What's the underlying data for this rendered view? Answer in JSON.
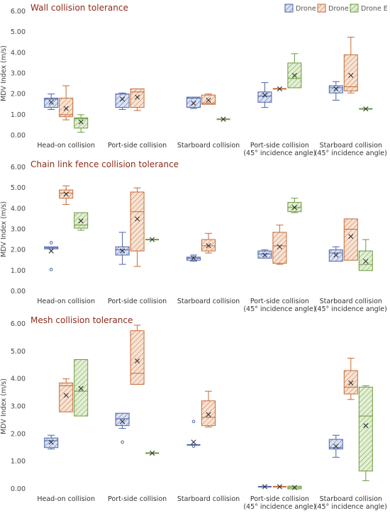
{
  "legend": [
    {
      "name": "Drone B",
      "color": "#4a63a8",
      "fill": "#cdd6ee",
      "pattern": "hatch-blue"
    },
    {
      "name": "Drone D",
      "color": "#c46a38",
      "fill": "#f6dcc8",
      "pattern": "hatch-orange"
    },
    {
      "name": "Drone E",
      "color": "#6a9a3e",
      "fill": "#dcebc9",
      "pattern": "hatch-green"
    }
  ],
  "categories": [
    [
      "Head-on collision"
    ],
    [
      "Port-side collision"
    ],
    [
      "Starboard collision"
    ],
    [
      "Port-side collision",
      "(45° incidence angle)"
    ],
    [
      "Starboard collision",
      "(45° incidence angle)"
    ]
  ],
  "chart_data": [
    {
      "type": "box",
      "title": "Wall collision tolerance",
      "ylabel": "MDV Index (m/s)",
      "ylim": [
        0,
        6
      ],
      "yticks": [
        "0.00",
        "1.00",
        "2.00",
        "3.00",
        "4.00",
        "5.00",
        "6.00"
      ],
      "boxes": [
        {
          "cat": 0,
          "series": 0,
          "min": 1.25,
          "q1": 1.35,
          "median": 1.75,
          "q3": 1.8,
          "max": 2.0,
          "mean": 1.6,
          "outliers": []
        },
        {
          "cat": 0,
          "series": 1,
          "min": 0.75,
          "q1": 0.9,
          "median": 1.0,
          "q3": 1.8,
          "max": 2.4,
          "mean": 1.3,
          "outliers": []
        },
        {
          "cat": 0,
          "series": 2,
          "min": 0.15,
          "q1": 0.35,
          "median": 0.8,
          "q3": 0.85,
          "max": 1.0,
          "mean": 0.65,
          "outliers": []
        },
        {
          "cat": 1,
          "series": 0,
          "min": 1.25,
          "q1": 1.35,
          "median": 2.0,
          "q3": 2.0,
          "max": 2.05,
          "mean": 1.75,
          "outliers": []
        },
        {
          "cat": 1,
          "series": 1,
          "min": 1.2,
          "q1": 1.35,
          "median": 2.1,
          "q3": 2.25,
          "max": 2.25,
          "mean": 1.85,
          "outliers": []
        },
        {
          "cat": 2,
          "series": 0,
          "min": 1.3,
          "q1": 1.35,
          "median": 1.8,
          "q3": 1.85,
          "max": 1.85,
          "mean": 1.55,
          "outliers": []
        },
        {
          "cat": 2,
          "series": 1,
          "min": 1.5,
          "q1": 1.5,
          "median": 1.55,
          "q3": 1.95,
          "max": 2.0,
          "mean": 1.7,
          "outliers": []
        },
        {
          "cat": 2,
          "series": 2,
          "min": 0.78,
          "q1": 0.78,
          "median": 0.78,
          "q3": 0.78,
          "max": 0.78,
          "mean": 0.78,
          "outliers": []
        },
        {
          "cat": 3,
          "series": 0,
          "min": 1.35,
          "q1": 1.6,
          "median": 1.9,
          "q3": 2.1,
          "max": 2.55,
          "mean": 1.95,
          "outliers": []
        },
        {
          "cat": 3,
          "series": 1,
          "min": 2.25,
          "q1": 2.25,
          "median": 2.25,
          "q3": 2.25,
          "max": 2.25,
          "mean": 2.25,
          "outliers": []
        },
        {
          "cat": 3,
          "series": 2,
          "min": 2.3,
          "q1": 2.3,
          "median": 2.75,
          "q3": 3.5,
          "max": 3.95,
          "mean": 2.9,
          "outliers": []
        },
        {
          "cat": 4,
          "series": 0,
          "min": 1.7,
          "q1": 2.05,
          "median": 2.3,
          "q3": 2.4,
          "max": 2.6,
          "mean": 2.25,
          "outliers": []
        },
        {
          "cat": 4,
          "series": 1,
          "min": 2.05,
          "q1": 2.15,
          "median": 2.35,
          "q3": 3.9,
          "max": 4.75,
          "mean": 2.9,
          "outliers": []
        },
        {
          "cat": 4,
          "series": 2,
          "min": 1.28,
          "q1": 1.28,
          "median": 1.28,
          "q3": 1.28,
          "max": 1.28,
          "mean": 1.28,
          "outliers": []
        }
      ]
    },
    {
      "type": "box",
      "title": "Chain link fence collision tolerance",
      "ylabel": "MDV Index (m/s)",
      "ylim": [
        0,
        6
      ],
      "yticks": [
        "0.00",
        "1.00",
        "2.00",
        "3.00",
        "4.00",
        "5.00",
        "6.00"
      ],
      "boxes": [
        {
          "cat": 0,
          "series": 0,
          "min": 2.05,
          "q1": 2.05,
          "median": 2.1,
          "q3": 2.15,
          "max": 2.15,
          "mean": 1.95,
          "outliers": [
            2.35,
            1.05
          ]
        },
        {
          "cat": 0,
          "series": 1,
          "min": 4.2,
          "q1": 4.5,
          "median": 4.75,
          "q3": 4.9,
          "max": 5.1,
          "mean": 4.7,
          "outliers": []
        },
        {
          "cat": 0,
          "series": 2,
          "min": 2.95,
          "q1": 3.05,
          "median": 3.2,
          "q3": 3.8,
          "max": 3.8,
          "mean": 3.4,
          "outliers": []
        },
        {
          "cat": 1,
          "series": 0,
          "min": 1.3,
          "q1": 1.75,
          "median": 2.0,
          "q3": 2.15,
          "max": 2.85,
          "mean": 1.95,
          "outliers": []
        },
        {
          "cat": 1,
          "series": 1,
          "min": 1.2,
          "q1": 1.95,
          "median": 3.85,
          "q3": 4.8,
          "max": 5.0,
          "mean": 3.5,
          "outliers": []
        },
        {
          "cat": 1,
          "series": 2,
          "min": 2.5,
          "q1": 2.5,
          "median": 2.5,
          "q3": 2.5,
          "max": 2.5,
          "mean": 2.5,
          "outliers": []
        },
        {
          "cat": 2,
          "series": 0,
          "min": 1.45,
          "q1": 1.5,
          "median": 1.6,
          "q3": 1.65,
          "max": 1.75,
          "mean": 1.6,
          "outliers": []
        },
        {
          "cat": 2,
          "series": 1,
          "min": 1.85,
          "q1": 1.95,
          "median": 2.2,
          "q3": 2.5,
          "max": 2.8,
          "mean": 2.2,
          "outliers": []
        },
        {
          "cat": 3,
          "series": 0,
          "min": 1.6,
          "q1": 1.6,
          "median": 1.8,
          "q3": 1.95,
          "max": 2.0,
          "mean": 1.75,
          "outliers": []
        },
        {
          "cat": 3,
          "series": 1,
          "min": 1.3,
          "q1": 1.35,
          "median": 2.2,
          "q3": 2.85,
          "max": 3.2,
          "mean": 2.15,
          "outliers": []
        },
        {
          "cat": 3,
          "series": 2,
          "min": 3.8,
          "q1": 3.85,
          "median": 4.05,
          "q3": 4.3,
          "max": 4.5,
          "mean": 4.05,
          "outliers": []
        },
        {
          "cat": 4,
          "series": 0,
          "min": 1.45,
          "q1": 1.45,
          "median": 1.85,
          "q3": 2.0,
          "max": 2.15,
          "mean": 1.75,
          "outliers": []
        },
        {
          "cat": 4,
          "series": 1,
          "min": 1.5,
          "q1": 1.5,
          "median": 3.0,
          "q3": 3.5,
          "max": 3.5,
          "mean": 2.65,
          "outliers": []
        },
        {
          "cat": 4,
          "series": 2,
          "min": 1.0,
          "q1": 1.0,
          "median": 1.3,
          "q3": 1.95,
          "max": 2.5,
          "mean": 1.45,
          "outliers": []
        }
      ]
    },
    {
      "type": "box",
      "title": "Mesh collision tolerance",
      "ylabel": "MDV Index (m/s)",
      "ylim": [
        0,
        6
      ],
      "yticks": [
        "0.00",
        "1.00",
        "2.00",
        "3.00",
        "4.00",
        "5.00",
        "6.00"
      ],
      "boxes": [
        {
          "cat": 0,
          "series": 0,
          "min": 1.45,
          "q1": 1.5,
          "median": 1.75,
          "q3": 1.85,
          "max": 1.95,
          "mean": 1.7,
          "outliers": []
        },
        {
          "cat": 0,
          "series": 1,
          "min": 2.8,
          "q1": 2.8,
          "median": 3.75,
          "q3": 3.85,
          "max": 4.0,
          "mean": 3.4,
          "outliers": []
        },
        {
          "cat": 0,
          "series": 2,
          "min": 2.65,
          "q1": 2.65,
          "median": 3.55,
          "q3": 4.7,
          "max": 4.7,
          "mean": 3.65,
          "outliers": []
        },
        {
          "cat": 1,
          "series": 0,
          "min": 2.2,
          "q1": 2.3,
          "median": 2.55,
          "q3": 2.75,
          "max": 2.75,
          "mean": 2.45,
          "outliers": [
            1.7
          ]
        },
        {
          "cat": 1,
          "series": 1,
          "min": 3.8,
          "q1": 3.8,
          "median": 4.2,
          "q3": 5.75,
          "max": 5.95,
          "mean": 4.65,
          "outliers": []
        },
        {
          "cat": 1,
          "series": 2,
          "min": 1.3,
          "q1": 1.3,
          "median": 1.3,
          "q3": 1.3,
          "max": 1.3,
          "mean": 1.3,
          "outliers": []
        },
        {
          "cat": 2,
          "series": 0,
          "min": 1.6,
          "q1": 1.6,
          "median": 1.6,
          "q3": 1.6,
          "max": 1.6,
          "mean": 1.7,
          "outliers": [
            2.45,
            1.55
          ]
        },
        {
          "cat": 2,
          "series": 1,
          "min": 2.25,
          "q1": 2.3,
          "median": 2.6,
          "q3": 3.2,
          "max": 3.55,
          "mean": 2.7,
          "outliers": []
        },
        {
          "cat": 3,
          "series": 0,
          "min": 0.08,
          "q1": 0.08,
          "median": 0.08,
          "q3": 0.08,
          "max": 0.08,
          "mean": 0.08,
          "outliers": []
        },
        {
          "cat": 3,
          "series": 1,
          "min": 0.08,
          "q1": 0.08,
          "median": 0.08,
          "q3": 0.08,
          "max": 0.08,
          "mean": 0.08,
          "outliers": []
        },
        {
          "cat": 3,
          "series": 2,
          "min": 0.0,
          "q1": 0.0,
          "median": 0.05,
          "q3": 0.1,
          "max": 0.1,
          "mean": 0.05,
          "outliers": []
        },
        {
          "cat": 4,
          "series": 0,
          "min": 1.15,
          "q1": 1.45,
          "median": 1.5,
          "q3": 1.8,
          "max": 1.95,
          "mean": 1.55,
          "outliers": []
        },
        {
          "cat": 4,
          "series": 1,
          "min": 3.25,
          "q1": 3.45,
          "median": 3.7,
          "q3": 4.3,
          "max": 4.75,
          "mean": 3.85,
          "outliers": []
        },
        {
          "cat": 4,
          "series": 2,
          "min": 0.3,
          "q1": 0.65,
          "median": 2.65,
          "q3": 3.7,
          "max": 3.75,
          "mean": 2.3,
          "outliers": []
        }
      ]
    }
  ]
}
